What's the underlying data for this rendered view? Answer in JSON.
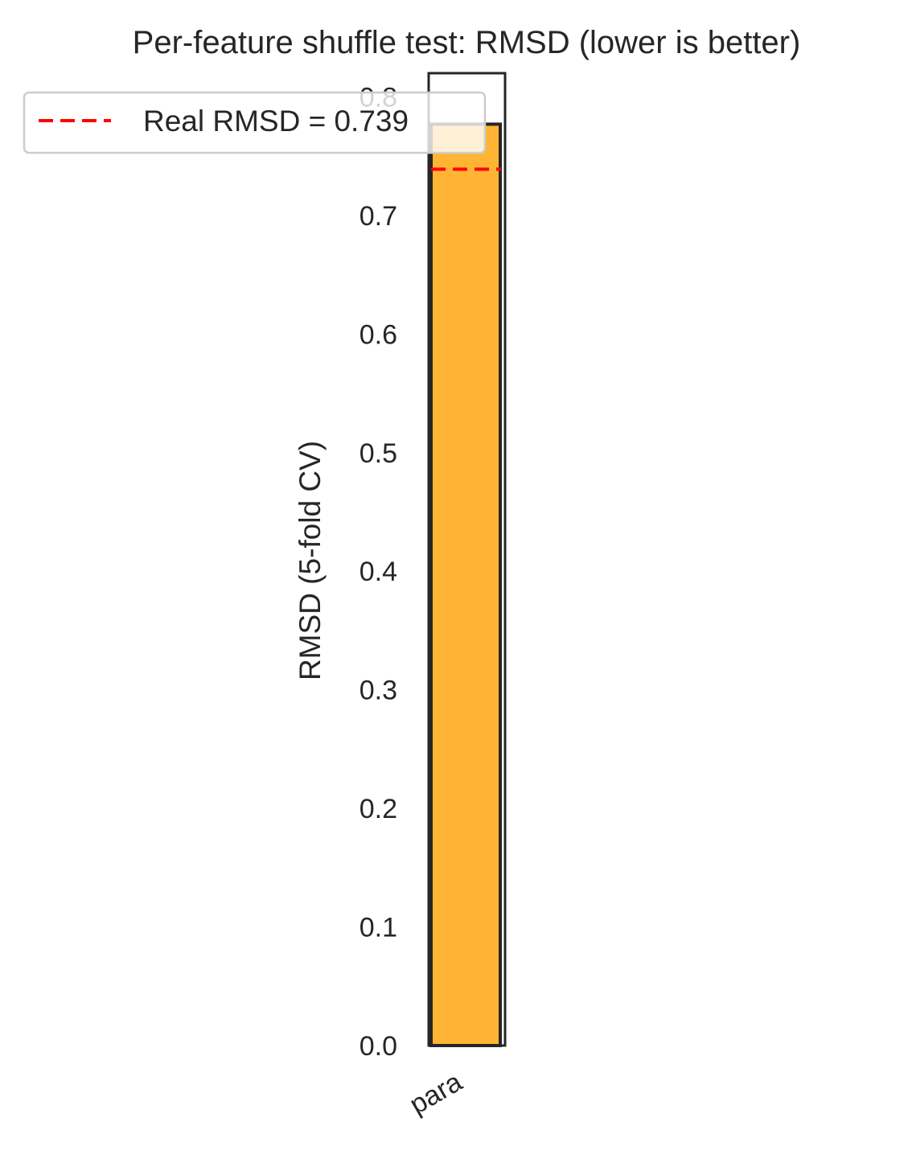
{
  "chart_data": {
    "type": "bar",
    "title": "Per-feature shuffle test: RMSD (lower is better)",
    "xlabel": "",
    "ylabel": "RMSD (5-fold CV)",
    "categories": [
      "para"
    ],
    "values": [
      0.777
    ],
    "ylim": [
      0,
      0.82
    ],
    "yticks": [
      0.0,
      0.1,
      0.2,
      0.3,
      0.4,
      0.5,
      0.6,
      0.7,
      0.8
    ],
    "ytick_labels": [
      "0.0",
      "0.1",
      "0.2",
      "0.3",
      "0.4",
      "0.5",
      "0.6",
      "0.7",
      "0.8"
    ],
    "bar_color": "#FFB533",
    "bar_edge_color": "#262626",
    "reference_line": {
      "value": 0.739,
      "label": "Real RMSD = 0.739",
      "color": "#FF0000",
      "style": "dashed"
    },
    "legend": {
      "placement": "top-left"
    },
    "grid": false
  }
}
